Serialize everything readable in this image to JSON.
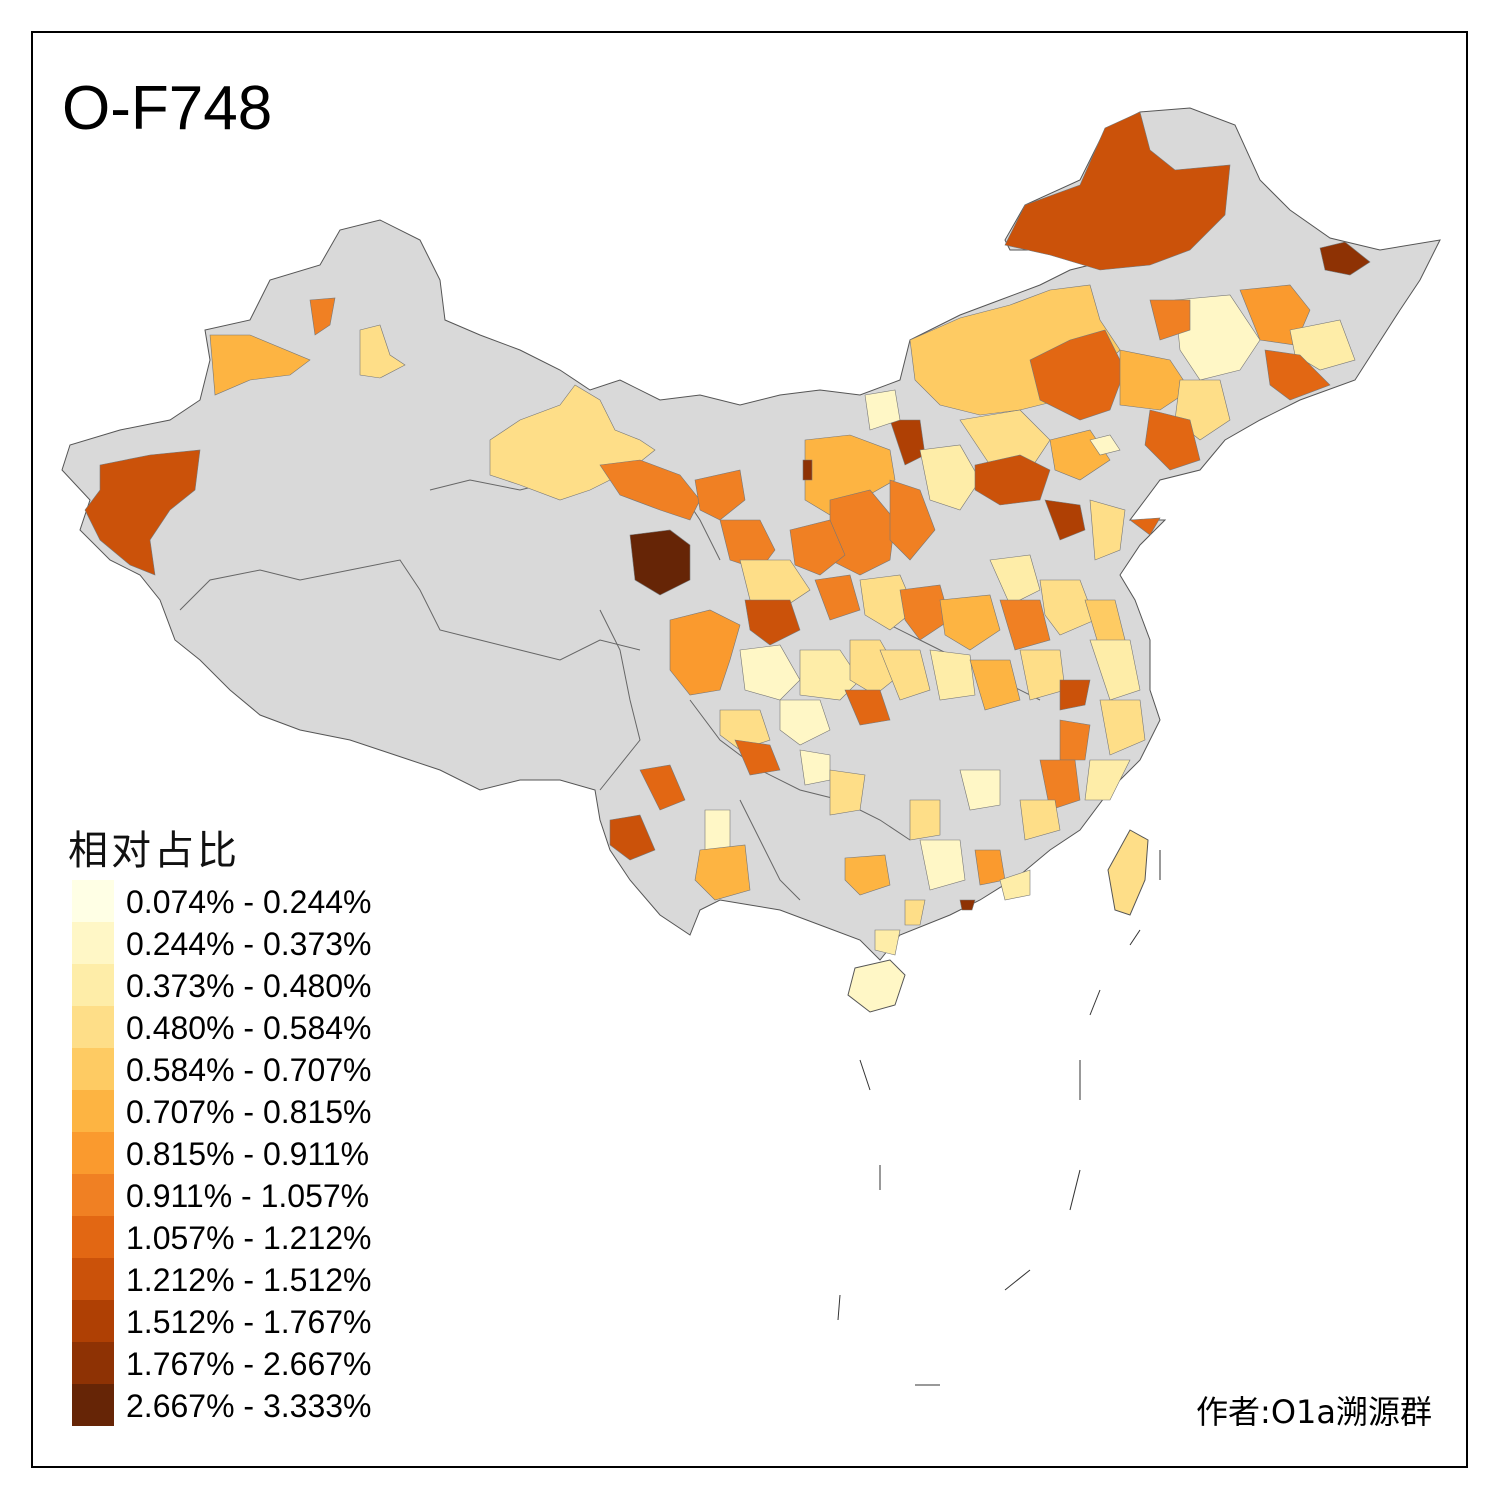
{
  "title": "O-F748",
  "legend": {
    "title": "相对占比",
    "items": [
      {
        "label": "0.074% - 0.244%",
        "color": "#FFFFE5"
      },
      {
        "label": "0.244% - 0.373%",
        "color": "#FFF7C6"
      },
      {
        "label": "0.373% - 0.480%",
        "color": "#FEEDA8"
      },
      {
        "label": "0.480% - 0.584%",
        "color": "#FEDE88"
      },
      {
        "label": "0.584% - 0.707%",
        "color": "#FECB63"
      },
      {
        "label": "0.707% - 0.815%",
        "color": "#FDB442"
      },
      {
        "label": "0.815% - 0.911%",
        "color": "#FA9A2E"
      },
      {
        "label": "0.911% - 1.057%",
        "color": "#F08023"
      },
      {
        "label": "1.057% - 1.212%",
        "color": "#E26713"
      },
      {
        "label": "1.212% - 1.512%",
        "color": "#CB520A"
      },
      {
        "label": "1.512% - 1.767%",
        "color": "#AF4004"
      },
      {
        "label": "1.767% - 2.667%",
        "color": "#8E3204"
      },
      {
        "label": "2.667% - 3.333%",
        "color": "#662506"
      }
    ]
  },
  "credit": "作者:O1a溯源群",
  "no_data_color": "#D9D9D9"
}
